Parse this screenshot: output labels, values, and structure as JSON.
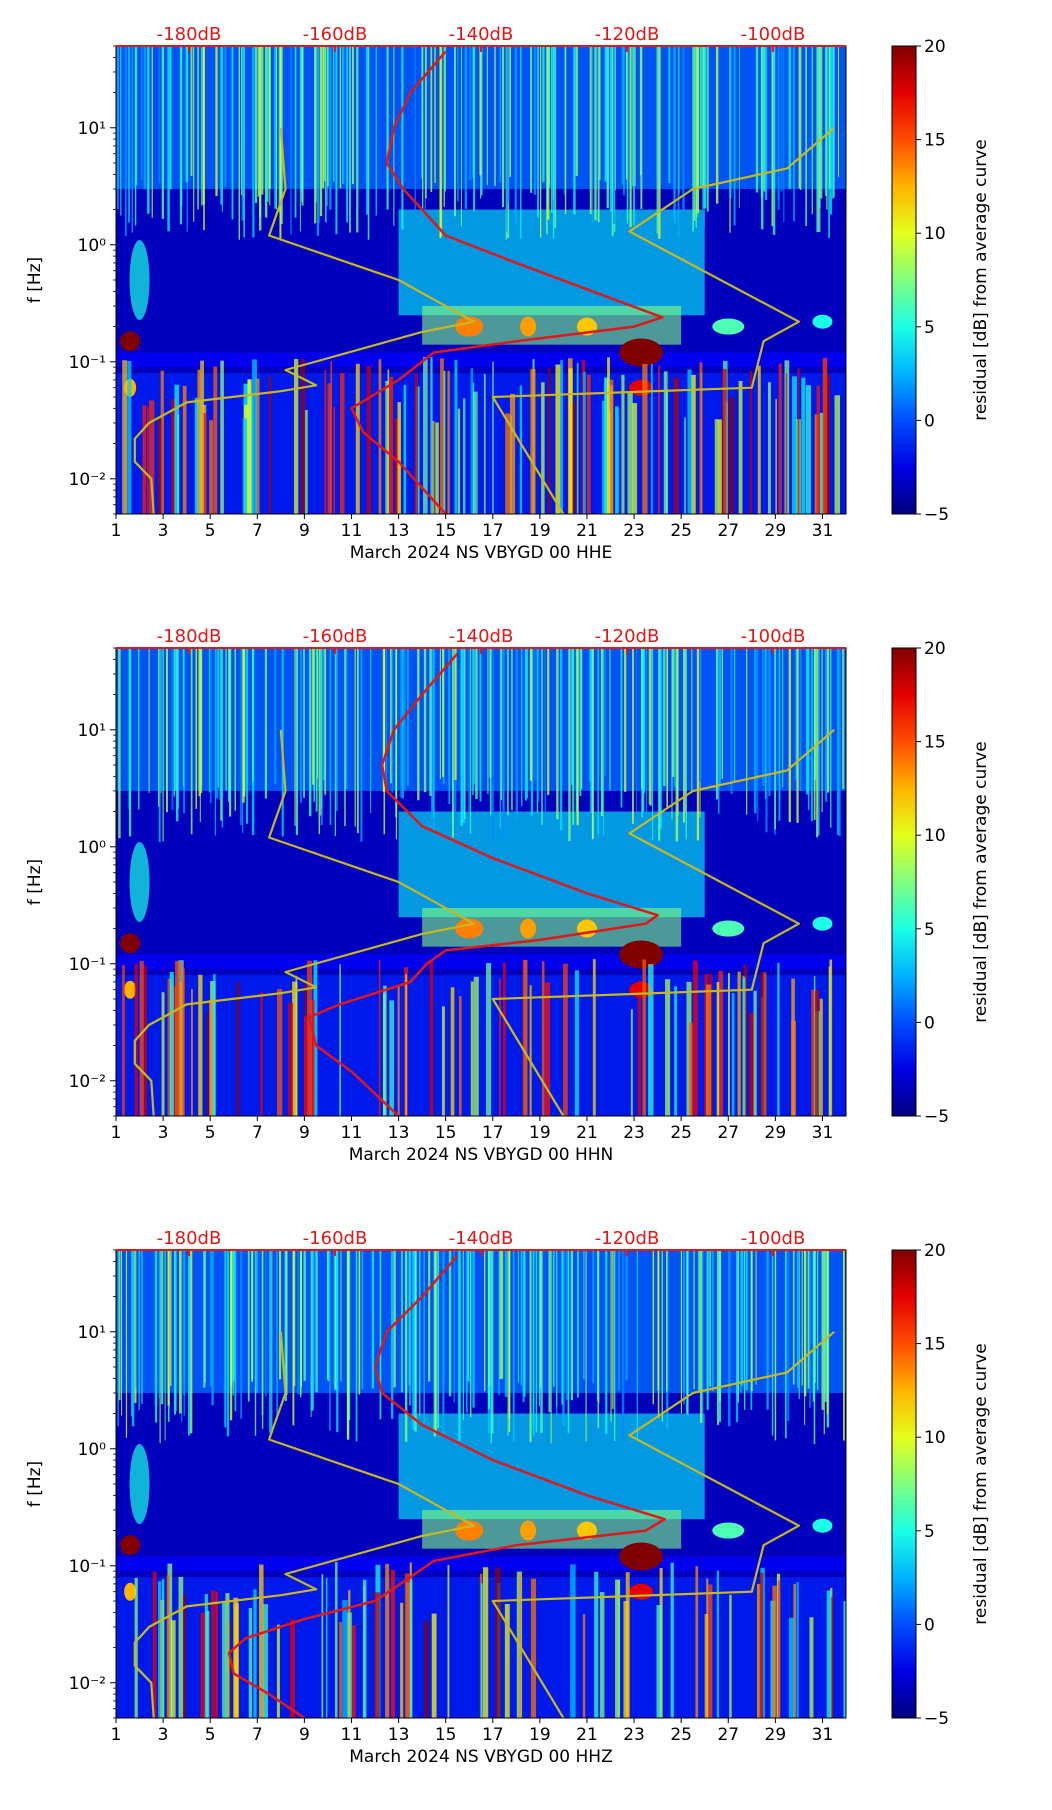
{
  "chart_data": [
    {
      "type": "heatmap",
      "title": "",
      "xlabel": "March 2024 NS VBYGD 00 HHE",
      "ylabel": "f [Hz]",
      "x_ticks": [
        "1",
        "3",
        "5",
        "7",
        "9",
        "11",
        "13",
        "15",
        "17",
        "19",
        "21",
        "23",
        "25",
        "27",
        "29",
        "31"
      ],
      "y_ticks": [
        "10⁻²",
        "10⁻¹",
        "10⁰",
        "10¹"
      ],
      "xlim": [
        1,
        32
      ],
      "ylim_hz": [
        0.005,
        50
      ],
      "top_axis_ticks": [
        "-180dB",
        "-160dB",
        "-140dB",
        "-120dB",
        "-100dB"
      ],
      "colorbar_label": "residual [dB] from average curve",
      "colorbar_ticks": [
        "20",
        "15",
        "10",
        "5",
        "0",
        "−5"
      ],
      "colorbar_range": [
        -5,
        20
      ],
      "colors": {
        "high_noise_model": "#c8b820",
        "ppsd_mean": "#e01818",
        "top_axis": "#e01818"
      },
      "series": [
        {
          "name": "low noise model",
          "color": "#c8b820",
          "points": [
            [
              2.6,
              0.005
            ],
            [
              2.5,
              0.01
            ],
            [
              1.8,
              0.014
            ],
            [
              1.8,
              0.022
            ],
            [
              2.4,
              0.03
            ],
            [
              4,
              0.045
            ],
            [
              8,
              0.056
            ],
            [
              9.5,
              0.063
            ],
            [
              8.2,
              0.085
            ],
            [
              14,
              0.18
            ],
            [
              16.2,
              0.22
            ],
            [
              13,
              0.5
            ],
            [
              7.5,
              1.2
            ],
            [
              8.2,
              3
            ],
            [
              8,
              10
            ]
          ]
        },
        {
          "name": "high noise model",
          "color": "#c8b820",
          "points": [
            [
              20,
              0.005
            ],
            [
              17,
              0.05
            ],
            [
              28,
              0.06
            ],
            [
              28.5,
              0.15
            ],
            [
              30,
              0.22
            ],
            [
              22.8,
              1.3
            ],
            [
              25.5,
              3
            ],
            [
              29.5,
              4.5
            ],
            [
              31.5,
              10
            ]
          ]
        },
        {
          "name": "mean PPSD (HHE)",
          "color": "#e01818",
          "points": [
            [
              15,
              0.005
            ],
            [
              13,
              0.014
            ],
            [
              11.5,
              0.025
            ],
            [
              11,
              0.04
            ],
            [
              13,
              0.07
            ],
            [
              14,
              0.1
            ],
            [
              14.5,
              0.12
            ],
            [
              18,
              0.15
            ],
            [
              23,
              0.2
            ],
            [
              24.2,
              0.24
            ],
            [
              22,
              0.35
            ],
            [
              18,
              0.7
            ],
            [
              15,
              1.2
            ],
            [
              13.2,
              3
            ],
            [
              12.5,
              5
            ],
            [
              12.8,
              10
            ],
            [
              13.5,
              20
            ],
            [
              15,
              45
            ]
          ]
        }
      ]
    },
    {
      "type": "heatmap",
      "title": "",
      "xlabel": "March 2024 NS VBYGD 00 HHN",
      "ylabel": "f [Hz]",
      "x_ticks": [
        "1",
        "3",
        "5",
        "7",
        "9",
        "11",
        "13",
        "15",
        "17",
        "19",
        "21",
        "23",
        "25",
        "27",
        "29",
        "31"
      ],
      "y_ticks": [
        "10⁻²",
        "10⁻¹",
        "10⁰",
        "10¹"
      ],
      "xlim": [
        1,
        32
      ],
      "ylim_hz": [
        0.005,
        50
      ],
      "top_axis_ticks": [
        "-180dB",
        "-160dB",
        "-140dB",
        "-120dB",
        "-100dB"
      ],
      "colorbar_label": "residual [dB] from average curve",
      "colorbar_ticks": [
        "20",
        "15",
        "10",
        "5",
        "0",
        "−5"
      ],
      "colorbar_range": [
        -5,
        20
      ],
      "colors": {
        "high_noise_model": "#c8b820",
        "ppsd_mean": "#e01818",
        "top_axis": "#e01818"
      },
      "series": [
        {
          "name": "low noise model",
          "color": "#c8b820",
          "points": [
            [
              2.6,
              0.005
            ],
            [
              2.5,
              0.01
            ],
            [
              1.8,
              0.014
            ],
            [
              1.8,
              0.022
            ],
            [
              2.4,
              0.03
            ],
            [
              4,
              0.045
            ],
            [
              8,
              0.056
            ],
            [
              9.5,
              0.063
            ],
            [
              8.2,
              0.085
            ],
            [
              14,
              0.18
            ],
            [
              16.2,
              0.22
            ],
            [
              13,
              0.5
            ],
            [
              7.5,
              1.2
            ],
            [
              8.2,
              3
            ],
            [
              8,
              10
            ]
          ]
        },
        {
          "name": "high noise model",
          "color": "#c8b820",
          "points": [
            [
              20,
              0.005
            ],
            [
              17,
              0.05
            ],
            [
              28,
              0.06
            ],
            [
              28.5,
              0.15
            ],
            [
              30,
              0.22
            ],
            [
              22.8,
              1.3
            ],
            [
              25.5,
              3
            ],
            [
              29.5,
              4.5
            ],
            [
              31.5,
              10
            ]
          ]
        },
        {
          "name": "mean PPSD (HHN)",
          "color": "#e01818",
          "points": [
            [
              13,
              0.005
            ],
            [
              11,
              0.012
            ],
            [
              9.5,
              0.02
            ],
            [
              9.2,
              0.035
            ],
            [
              10.5,
              0.045
            ],
            [
              13.5,
              0.07
            ],
            [
              14.2,
              0.1
            ],
            [
              15,
              0.13
            ],
            [
              19,
              0.16
            ],
            [
              23.5,
              0.22
            ],
            [
              24,
              0.26
            ],
            [
              21,
              0.4
            ],
            [
              17,
              0.8
            ],
            [
              14,
              1.5
            ],
            [
              12.5,
              3
            ],
            [
              12.3,
              5
            ],
            [
              12.8,
              10
            ],
            [
              14,
              20
            ],
            [
              15.5,
              45
            ]
          ]
        }
      ]
    },
    {
      "type": "heatmap",
      "title": "",
      "xlabel": "March 2024 NS VBYGD 00 HHZ",
      "ylabel": "f [Hz]",
      "x_ticks": [
        "1",
        "3",
        "5",
        "7",
        "9",
        "11",
        "13",
        "15",
        "17",
        "19",
        "21",
        "23",
        "25",
        "27",
        "29",
        "31"
      ],
      "y_ticks": [
        "10⁻²",
        "10⁻¹",
        "10⁰",
        "10¹"
      ],
      "xlim": [
        1,
        32
      ],
      "ylim_hz": [
        0.005,
        50
      ],
      "top_axis_ticks": [
        "-180dB",
        "-160dB",
        "-140dB",
        "-120dB",
        "-100dB"
      ],
      "colorbar_label": "residual [dB] from average curve",
      "colorbar_ticks": [
        "20",
        "15",
        "10",
        "5",
        "0",
        "−5"
      ],
      "colorbar_range": [
        -5,
        20
      ],
      "colors": {
        "high_noise_model": "#c8b820",
        "ppsd_mean": "#e01818",
        "top_axis": "#e01818"
      },
      "series": [
        {
          "name": "low noise model",
          "color": "#c8b820",
          "points": [
            [
              2.6,
              0.005
            ],
            [
              2.5,
              0.01
            ],
            [
              1.8,
              0.014
            ],
            [
              1.8,
              0.022
            ],
            [
              2.4,
              0.03
            ],
            [
              4,
              0.045
            ],
            [
              8,
              0.056
            ],
            [
              9.5,
              0.063
            ],
            [
              8.2,
              0.085
            ],
            [
              14,
              0.18
            ],
            [
              16.2,
              0.22
            ],
            [
              13,
              0.5
            ],
            [
              7.5,
              1.2
            ],
            [
              8.2,
              3
            ],
            [
              8,
              10
            ]
          ]
        },
        {
          "name": "high noise model",
          "color": "#c8b820",
          "points": [
            [
              20,
              0.005
            ],
            [
              17,
              0.05
            ],
            [
              28,
              0.06
            ],
            [
              28.5,
              0.15
            ],
            [
              30,
              0.22
            ],
            [
              22.8,
              1.3
            ],
            [
              25.5,
              3
            ],
            [
              29.5,
              4.5
            ],
            [
              31.5,
              10
            ]
          ]
        },
        {
          "name": "mean PPSD (HHZ)",
          "color": "#e01818",
          "points": [
            [
              9,
              0.005
            ],
            [
              7.5,
              0.008
            ],
            [
              6,
              0.012
            ],
            [
              5.8,
              0.018
            ],
            [
              6.5,
              0.024
            ],
            [
              9,
              0.035
            ],
            [
              12,
              0.05
            ],
            [
              13.5,
              0.08
            ],
            [
              14.5,
              0.11
            ],
            [
              18,
              0.15
            ],
            [
              23.5,
              0.2
            ],
            [
              24.3,
              0.25
            ],
            [
              21,
              0.4
            ],
            [
              17,
              0.8
            ],
            [
              14,
              1.6
            ],
            [
              12.3,
              3
            ],
            [
              12,
              5
            ],
            [
              12.5,
              10
            ],
            [
              14,
              20
            ],
            [
              15.5,
              45
            ]
          ]
        }
      ]
    }
  ]
}
